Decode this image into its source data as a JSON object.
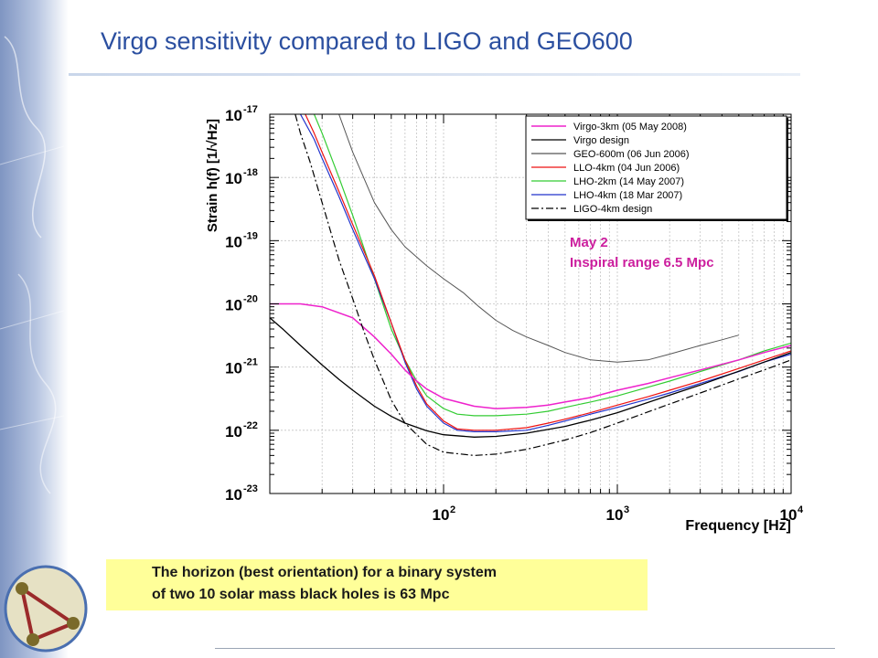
{
  "slide": {
    "title": "Virgo sensitivity compared to LIGO and GEO600",
    "note_lines": [
      "The horizon (best orientation) for a binary system",
      "of two 10 solar mass black holes is 63 Mpc"
    ]
  },
  "chart_data": {
    "type": "line",
    "title": "",
    "xlabel": "Frequency [Hz]",
    "ylabel": "Strain h(f) [1/√Hz]",
    "xscale": "log",
    "yscale": "log",
    "xlim": [
      10,
      10000
    ],
    "ylim": [
      1e-23,
      1e-17
    ],
    "grid": true,
    "legend_position": "top-right",
    "x_tick_labels": [
      {
        "value": 100,
        "base": "10",
        "exp": "2"
      },
      {
        "value": 1000,
        "base": "10",
        "exp": "3"
      },
      {
        "value": 10000,
        "base": "10",
        "exp": "4"
      }
    ],
    "y_tick_labels": [
      {
        "value": 1e-17,
        "base": "10",
        "exp": "-17"
      },
      {
        "value": 1e-18,
        "base": "10",
        "exp": "-18"
      },
      {
        "value": 1e-19,
        "base": "10",
        "exp": "-19"
      },
      {
        "value": 1e-20,
        "base": "10",
        "exp": "-20"
      },
      {
        "value": 1e-21,
        "base": "10",
        "exp": "-21"
      },
      {
        "value": 1e-22,
        "base": "10",
        "exp": "-22"
      },
      {
        "value": 1e-23,
        "base": "10",
        "exp": "-23"
      }
    ],
    "annotation": {
      "lines": [
        "May 2",
        "Inspiral range 6.5 Mpc"
      ],
      "color": "#cc1f9e"
    },
    "series": [
      {
        "name": "GEO-600m  (06 Jun 2006)",
        "color": "#555555",
        "dash": "",
        "width": 1,
        "x": [
          25,
          30,
          40,
          50,
          60,
          70,
          80,
          100,
          130,
          160,
          200,
          250,
          300,
          400,
          500,
          700,
          1000,
          1500,
          2000,
          3000,
          4000,
          5000
        ],
        "y": [
          1e-17,
          2.5e-18,
          4e-19,
          1.5e-19,
          8e-20,
          5.5e-20,
          4e-20,
          2.5e-20,
          1.5e-20,
          9e-21,
          5.5e-21,
          3.8e-21,
          3e-21,
          2.2e-21,
          1.7e-21,
          1.3e-21,
          1.2e-21,
          1.3e-21,
          1.6e-21,
          2.2e-21,
          2.7e-21,
          3.2e-21
        ]
      },
      {
        "name": "LHO-2km   (14 May 2007)",
        "color": "#33cc33",
        "dash": "",
        "width": 1.2,
        "x": [
          18,
          20,
          25,
          30,
          40,
          50,
          60,
          70,
          80,
          100,
          120,
          150,
          200,
          300,
          400,
          500,
          700,
          1000,
          1500,
          2000,
          3000,
          5000,
          7000,
          10000
        ],
        "y": [
          1e-17,
          5e-18,
          1e-18,
          2.5e-19,
          2.5e-20,
          4e-21,
          1.3e-21,
          6e-22,
          3.5e-22,
          2.2e-22,
          1.8e-22,
          1.7e-22,
          1.7e-22,
          1.8e-22,
          2e-22,
          2.3e-22,
          2.8e-22,
          3.5e-22,
          4.8e-22,
          6e-22,
          8.5e-22,
          1.3e-21,
          1.8e-21,
          2.4e-21
        ]
      },
      {
        "name": "LHO-4km   (18 Mar 2007)",
        "color": "#2233cc",
        "dash": "",
        "width": 1.2,
        "x": [
          15,
          18,
          20,
          25,
          30,
          40,
          50,
          60,
          70,
          80,
          100,
          120,
          150,
          200,
          300,
          400,
          500,
          700,
          1000,
          1500,
          2000,
          3000,
          5000,
          7000,
          10000
        ],
        "y": [
          1e-17,
          4e-18,
          2e-18,
          5e-19,
          1.5e-19,
          2.5e-20,
          5e-21,
          1.2e-21,
          4.5e-22,
          2.4e-22,
          1.3e-22,
          1e-22,
          9.5e-23,
          9.5e-23,
          1e-22,
          1.2e-22,
          1.4e-22,
          1.8e-22,
          2.3e-22,
          3.1e-22,
          3.9e-22,
          5.5e-22,
          8.5e-22,
          1.2e-21,
          1.6e-21
        ]
      },
      {
        "name": "LLO-4km   (04 Jun 2006)",
        "color": "#ee1111",
        "dash": "",
        "width": 1.2,
        "x": [
          16,
          18,
          20,
          25,
          30,
          40,
          50,
          60,
          70,
          80,
          100,
          120,
          150,
          200,
          300,
          400,
          500,
          700,
          1000,
          1500,
          2000,
          3000,
          5000,
          7000,
          10000
        ],
        "y": [
          1e-17,
          5e-18,
          2.5e-18,
          6e-19,
          1.8e-19,
          2.8e-20,
          5e-21,
          1.3e-21,
          5e-22,
          2.6e-22,
          1.4e-22,
          1.05e-22,
          1e-22,
          1e-22,
          1.1e-22,
          1.3e-22,
          1.5e-22,
          1.9e-22,
          2.5e-22,
          3.4e-22,
          4.3e-22,
          6e-22,
          9.5e-22,
          1.3e-21,
          1.8e-21
        ]
      },
      {
        "name": "Virgo-3km (05 May 2008)",
        "color": "#ee22cc",
        "dash": "",
        "width": 1.5,
        "x": [
          10,
          15,
          20,
          30,
          40,
          50,
          60,
          70,
          80,
          100,
          150,
          200,
          300,
          400,
          500,
          700,
          1000,
          1500,
          2000,
          3000,
          5000,
          7000,
          10000
        ],
        "y": [
          1e-20,
          1e-20,
          9e-21,
          6e-21,
          3e-21,
          1.6e-21,
          9e-22,
          6e-22,
          4.5e-22,
          3.2e-22,
          2.4e-22,
          2.2e-22,
          2.3e-22,
          2.5e-22,
          2.8e-22,
          3.3e-22,
          4.3e-22,
          5.5e-22,
          6.8e-22,
          9e-22,
          1.3e-21,
          1.7e-21,
          2.2e-21
        ]
      },
      {
        "name": "Virgo design",
        "color": "#000000",
        "dash": "",
        "width": 1.3,
        "x": [
          10,
          12,
          15,
          20,
          25,
          30,
          40,
          50,
          60,
          80,
          100,
          150,
          200,
          300,
          500,
          700,
          1000,
          2000,
          3000,
          5000,
          7000,
          10000
        ],
        "y": [
          6e-21,
          3.9e-21,
          2.2e-21,
          1.08e-21,
          6.4e-22,
          4.3e-22,
          2.4e-22,
          1.66e-22,
          1.3e-22,
          9.8e-23,
          8.5e-23,
          7.8e-23,
          8e-23,
          9e-23,
          1.15e-22,
          1.45e-22,
          1.9e-22,
          3.6e-22,
          5.2e-22,
          8.6e-22,
          1.2e-21,
          1.7e-21
        ]
      },
      {
        "name": "LIGO-4km  design",
        "color": "#000000",
        "dash": "8,3,2,3",
        "width": 1.2,
        "x": [
          14,
          15,
          17,
          20,
          25,
          30,
          35,
          40,
          50,
          60,
          80,
          100,
          150,
          200,
          300,
          500,
          700,
          1000,
          2000,
          3000,
          5000,
          7000,
          10000
        ],
        "y": [
          1e-17,
          5e-18,
          1.8e-18,
          4e-19,
          5e-20,
          1.2e-20,
          3.5e-21,
          1.3e-21,
          3e-22,
          1.3e-22,
          6e-23,
          4.5e-23,
          4e-23,
          4.2e-23,
          5e-23,
          7e-23,
          9.2e-23,
          1.3e-22,
          2.6e-22,
          3.9e-22,
          6.5e-22,
          9e-22,
          1.3e-21
        ]
      }
    ],
    "legend_order": [
      4,
      5,
      0,
      3,
      1,
      2,
      6
    ]
  }
}
